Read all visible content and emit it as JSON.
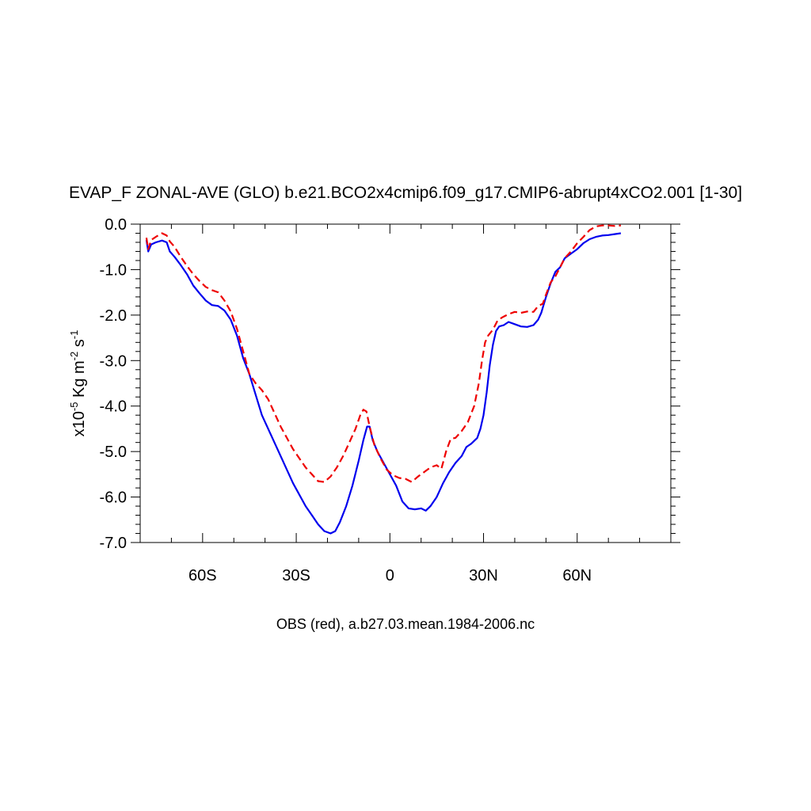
{
  "chart_data": {
    "type": "line",
    "title": "EVAP_F ZONAL-AVE (GLO) b.e21.BCO2x4cmip6.f09_g17.CMIP6-abrupt4xCO2.001 [1-30]",
    "xlabel": "OBS (red), a.b27.03.mean.1984-2006.nc",
    "ylabel": "x10-5 Kg m-2 s-1",
    "ylabel_parts": {
      "pre": "x10",
      "sup1": "-5",
      "mid": " Kg m",
      "sup2": "-2",
      "mid2": " s",
      "sup3": "-1"
    },
    "xlim": [
      -80,
      90
    ],
    "ylim": [
      -7.0,
      0.0
    ],
    "x_ticks": [
      {
        "value": -60,
        "label": "60S"
      },
      {
        "value": -30,
        "label": "30S"
      },
      {
        "value": 0,
        "label": "0"
      },
      {
        "value": 30,
        "label": "30N"
      },
      {
        "value": 60,
        "label": "60N"
      }
    ],
    "y_ticks": [
      {
        "value": 0.0,
        "label": "0.0"
      },
      {
        "value": -1.0,
        "label": "-1.0"
      },
      {
        "value": -2.0,
        "label": "-2.0"
      },
      {
        "value": -3.0,
        "label": "-3.0"
      },
      {
        "value": -4.0,
        "label": "-4.0"
      },
      {
        "value": -5.0,
        "label": "-5.0"
      },
      {
        "value": -6.0,
        "label": "-6.0"
      },
      {
        "value": -7.0,
        "label": "-7.0"
      }
    ],
    "series": [
      {
        "color": "#0000ee",
        "style": "solid",
        "points": [
          [
            -78,
            -0.35
          ],
          [
            -77.4,
            -0.6
          ],
          [
            -76.5,
            -0.45
          ],
          [
            -75,
            -0.4
          ],
          [
            -73,
            -0.36
          ],
          [
            -71.5,
            -0.4
          ],
          [
            -70.5,
            -0.6
          ],
          [
            -69,
            -0.72
          ],
          [
            -67,
            -0.9
          ],
          [
            -65,
            -1.1
          ],
          [
            -63,
            -1.35
          ],
          [
            -61,
            -1.52
          ],
          [
            -59,
            -1.68
          ],
          [
            -57,
            -1.78
          ],
          [
            -55,
            -1.8
          ],
          [
            -53,
            -1.9
          ],
          [
            -51,
            -2.1
          ],
          [
            -49,
            -2.45
          ],
          [
            -47,
            -2.95
          ],
          [
            -45,
            -3.3
          ],
          [
            -43,
            -3.75
          ],
          [
            -41,
            -4.2
          ],
          [
            -39,
            -4.5
          ],
          [
            -37,
            -4.8
          ],
          [
            -35,
            -5.1
          ],
          [
            -33,
            -5.4
          ],
          [
            -31,
            -5.7
          ],
          [
            -29,
            -5.95
          ],
          [
            -27,
            -6.2
          ],
          [
            -25,
            -6.4
          ],
          [
            -23,
            -6.6
          ],
          [
            -21,
            -6.75
          ],
          [
            -19,
            -6.8
          ],
          [
            -17.5,
            -6.75
          ],
          [
            -16,
            -6.55
          ],
          [
            -14,
            -6.2
          ],
          [
            -12,
            -5.75
          ],
          [
            -10,
            -5.2
          ],
          [
            -8.5,
            -4.75
          ],
          [
            -7.3,
            -4.45
          ],
          [
            -6.5,
            -4.45
          ],
          [
            -5.5,
            -4.75
          ],
          [
            -4,
            -5.0
          ],
          [
            -2,
            -5.25
          ],
          [
            0,
            -5.5
          ],
          [
            2,
            -5.75
          ],
          [
            4,
            -6.1
          ],
          [
            6,
            -6.25
          ],
          [
            8,
            -6.27
          ],
          [
            10,
            -6.25
          ],
          [
            11.5,
            -6.3
          ],
          [
            13,
            -6.2
          ],
          [
            15,
            -6.0
          ],
          [
            17,
            -5.7
          ],
          [
            19,
            -5.45
          ],
          [
            21,
            -5.25
          ],
          [
            23,
            -5.1
          ],
          [
            24.5,
            -4.9
          ],
          [
            26,
            -4.83
          ],
          [
            28,
            -4.7
          ],
          [
            29,
            -4.5
          ],
          [
            30,
            -4.2
          ],
          [
            31,
            -3.7
          ],
          [
            32,
            -3.1
          ],
          [
            33,
            -2.65
          ],
          [
            34,
            -2.35
          ],
          [
            35,
            -2.25
          ],
          [
            36.5,
            -2.22
          ],
          [
            38,
            -2.15
          ],
          [
            40,
            -2.2
          ],
          [
            42,
            -2.25
          ],
          [
            44,
            -2.26
          ],
          [
            46,
            -2.22
          ],
          [
            47.5,
            -2.1
          ],
          [
            48.5,
            -1.95
          ],
          [
            50,
            -1.6
          ],
          [
            51.5,
            -1.3
          ],
          [
            53,
            -1.05
          ],
          [
            54.5,
            -0.95
          ],
          [
            56,
            -0.75
          ],
          [
            58,
            -0.65
          ],
          [
            60,
            -0.55
          ],
          [
            62,
            -0.42
          ],
          [
            64,
            -0.33
          ],
          [
            66,
            -0.28
          ],
          [
            68,
            -0.25
          ],
          [
            70,
            -0.24
          ],
          [
            72,
            -0.22
          ],
          [
            74,
            -0.2
          ]
        ]
      },
      {
        "color": "#ee0000",
        "style": "dashed",
        "points": [
          [
            -78,
            -0.3
          ],
          [
            -77.4,
            -0.55
          ],
          [
            -76.5,
            -0.35
          ],
          [
            -75,
            -0.28
          ],
          [
            -73,
            -0.2
          ],
          [
            -71.5,
            -0.25
          ],
          [
            -70.5,
            -0.38
          ],
          [
            -69,
            -0.5
          ],
          [
            -67,
            -0.72
          ],
          [
            -65,
            -0.92
          ],
          [
            -63,
            -1.1
          ],
          [
            -61,
            -1.25
          ],
          [
            -59,
            -1.38
          ],
          [
            -57,
            -1.45
          ],
          [
            -55,
            -1.5
          ],
          [
            -53,
            -1.68
          ],
          [
            -51,
            -1.92
          ],
          [
            -49,
            -2.3
          ],
          [
            -47,
            -2.8
          ],
          [
            -45,
            -3.3
          ],
          [
            -43,
            -3.5
          ],
          [
            -41,
            -3.65
          ],
          [
            -39,
            -3.85
          ],
          [
            -37,
            -4.15
          ],
          [
            -35,
            -4.45
          ],
          [
            -33,
            -4.7
          ],
          [
            -31,
            -4.95
          ],
          [
            -29,
            -5.15
          ],
          [
            -27,
            -5.35
          ],
          [
            -25,
            -5.5
          ],
          [
            -23,
            -5.65
          ],
          [
            -21,
            -5.67
          ],
          [
            -19,
            -5.55
          ],
          [
            -17,
            -5.35
          ],
          [
            -15,
            -5.1
          ],
          [
            -13,
            -4.8
          ],
          [
            -11,
            -4.5
          ],
          [
            -9.5,
            -4.2
          ],
          [
            -8.5,
            -4.08
          ],
          [
            -7.5,
            -4.12
          ],
          [
            -6.5,
            -4.45
          ],
          [
            -5,
            -4.85
          ],
          [
            -3,
            -5.15
          ],
          [
            -1,
            -5.4
          ],
          [
            1,
            -5.52
          ],
          [
            3,
            -5.58
          ],
          [
            5,
            -5.6
          ],
          [
            7,
            -5.67
          ],
          [
            9,
            -5.55
          ],
          [
            11,
            -5.45
          ],
          [
            13,
            -5.35
          ],
          [
            15,
            -5.3
          ],
          [
            16.5,
            -5.38
          ],
          [
            18,
            -5.0
          ],
          [
            19.5,
            -4.72
          ],
          [
            21,
            -4.7
          ],
          [
            23,
            -4.55
          ],
          [
            25,
            -4.35
          ],
          [
            27,
            -4.0
          ],
          [
            28.5,
            -3.5
          ],
          [
            29.5,
            -3.0
          ],
          [
            30.5,
            -2.6
          ],
          [
            31.5,
            -2.45
          ],
          [
            33,
            -2.32
          ],
          [
            34.5,
            -2.12
          ],
          [
            36,
            -2.05
          ],
          [
            38,
            -1.98
          ],
          [
            40,
            -1.93
          ],
          [
            42,
            -1.95
          ],
          [
            44,
            -1.92
          ],
          [
            46,
            -1.93
          ],
          [
            47.5,
            -1.8
          ],
          [
            49,
            -1.75
          ],
          [
            50,
            -1.55
          ],
          [
            51.5,
            -1.28
          ],
          [
            53,
            -1.15
          ],
          [
            54.5,
            -0.95
          ],
          [
            56,
            -0.75
          ],
          [
            58,
            -0.6
          ],
          [
            60,
            -0.42
          ],
          [
            62,
            -0.28
          ],
          [
            64,
            -0.13
          ],
          [
            66,
            -0.05
          ],
          [
            68,
            -0.03
          ],
          [
            70,
            -0.03
          ],
          [
            72,
            -0.04
          ],
          [
            74,
            -0.03
          ]
        ]
      }
    ]
  }
}
